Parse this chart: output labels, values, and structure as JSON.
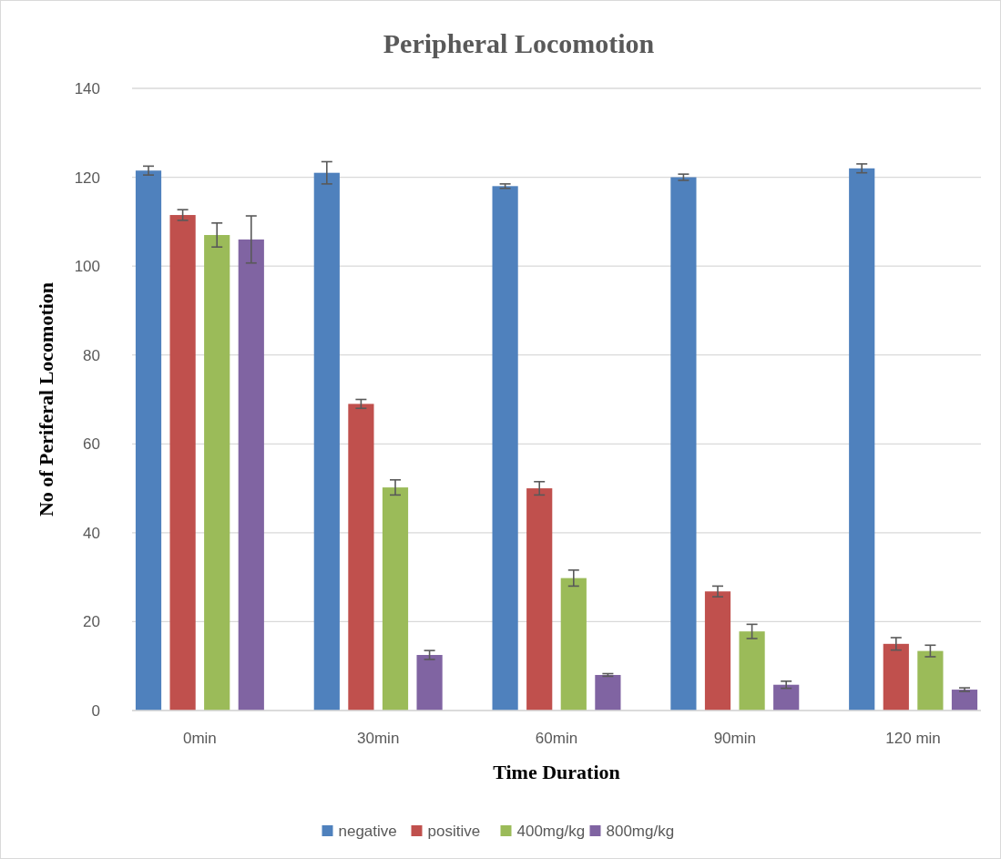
{
  "chart_data": {
    "type": "bar",
    "title": "Peripheral Locomotion",
    "xlabel": "Time Duration",
    "ylabel": "No of Periferal Locomotion",
    "categories": [
      "0min",
      "30min",
      "60min",
      "90min",
      "120 min"
    ],
    "series": [
      {
        "name": "negative",
        "color": "#4f81bd",
        "values": [
          121.5,
          121,
          118,
          120,
          122
        ],
        "errors": [
          1,
          2.5,
          0.5,
          0.7,
          1
        ]
      },
      {
        "name": "positive",
        "color": "#c0504d",
        "values": [
          111.5,
          69,
          50,
          26.8,
          15
        ],
        "errors": [
          1.2,
          1,
          1.5,
          1.2,
          1.4
        ]
      },
      {
        "name": "400mg/kg",
        "color": "#9bbb59",
        "values": [
          107,
          50.2,
          29.8,
          17.8,
          13.4
        ],
        "errors": [
          2.7,
          1.7,
          1.8,
          1.6,
          1.3
        ]
      },
      {
        "name": "800mg/kg",
        "color": "#8064a2",
        "values": [
          106,
          12.5,
          8,
          5.8,
          4.7
        ],
        "errors": [
          5.3,
          1,
          0.3,
          0.8,
          0.4
        ]
      }
    ],
    "ylim": [
      0,
      140
    ],
    "yticks": [
      0,
      20,
      40,
      60,
      80,
      100,
      120,
      140
    ],
    "grid": "y",
    "legend": "bottom"
  }
}
